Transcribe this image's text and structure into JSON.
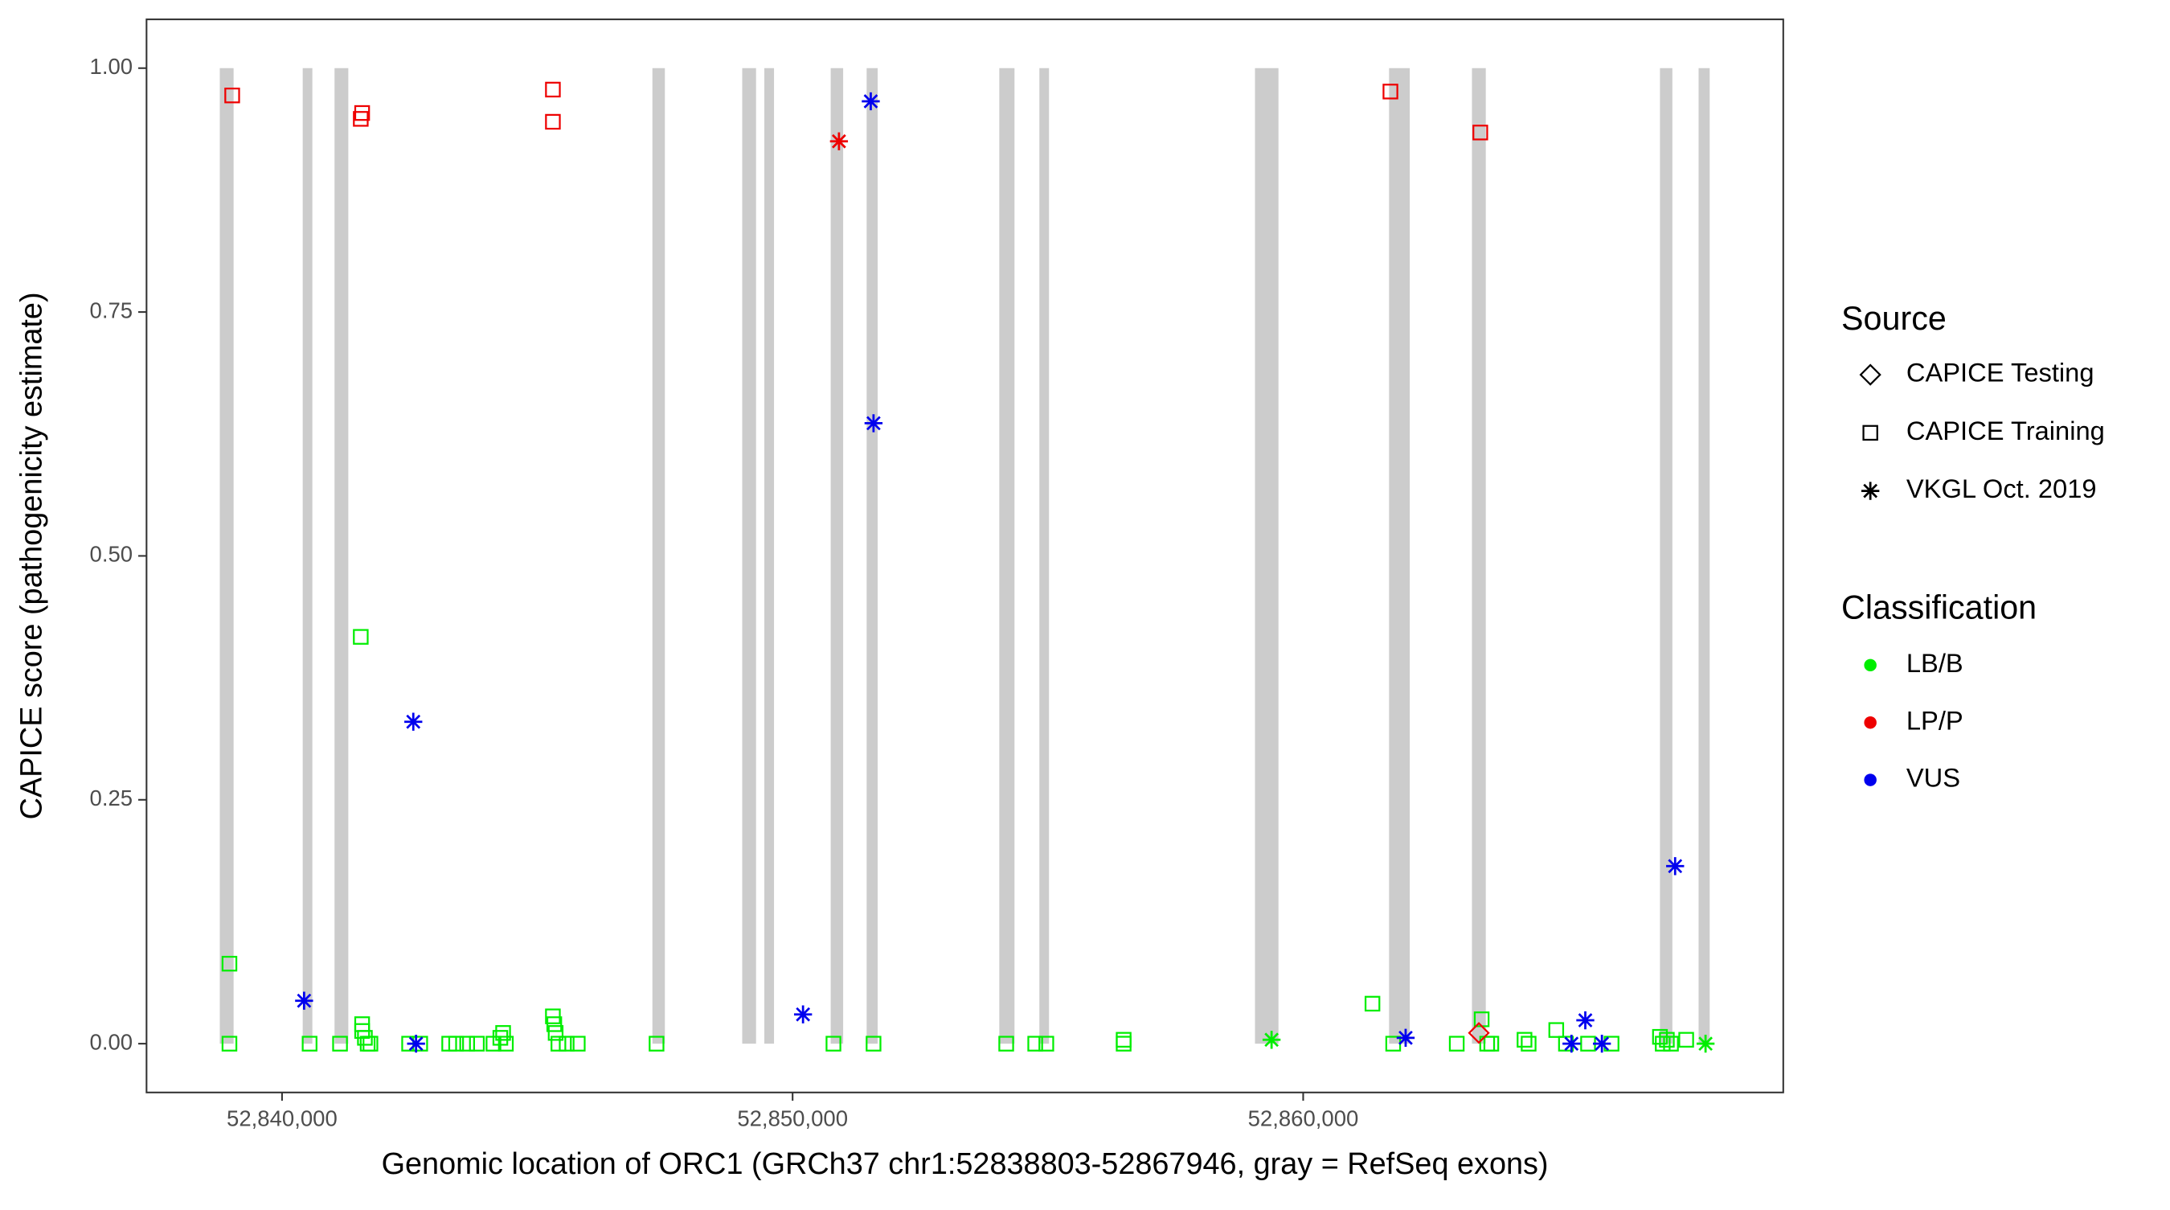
{
  "chart_data": {
    "type": "scatter",
    "x_label": "Genomic location of ORC1 (GRCh37 chr1:52838803-52867946, gray = RefSeq exons)",
    "y_label": "CAPICE score (pathogenicity estimate)",
    "xlim": [
      52837346,
      52869403
    ],
    "ylim": [
      -0.05,
      1.05
    ],
    "xticks": [
      {
        "value": 52840000,
        "label": "52,840,000"
      },
      {
        "value": 52850000,
        "label": "52,850,000"
      },
      {
        "value": 52860000,
        "label": "52,860,000"
      }
    ],
    "yticks": [
      {
        "value": 0,
        "label": "0.00"
      },
      {
        "value": 0.25,
        "label": "0.25"
      },
      {
        "value": 0.5,
        "label": "0.50"
      },
      {
        "value": 0.75,
        "label": "0.75"
      },
      {
        "value": 1,
        "label": "1.00"
      }
    ],
    "exon_color": "#cccccc",
    "exons": [
      [
        52838781,
        52839051
      ],
      [
        52840405,
        52840594
      ],
      [
        52841028,
        52841298
      ],
      [
        52847254,
        52847498
      ],
      [
        52849013,
        52849284
      ],
      [
        52849446,
        52849636
      ],
      [
        52850746,
        52850990
      ],
      [
        52851450,
        52851666
      ],
      [
        52854048,
        52854346
      ],
      [
        52854833,
        52855022
      ],
      [
        52859056,
        52859516
      ],
      [
        52861682,
        52862088
      ],
      [
        52863306,
        52863577
      ],
      [
        52866988,
        52867231
      ],
      [
        52867745,
        52867962
      ]
    ],
    "shape_legend": {
      "title": "Source",
      "entries": [
        {
          "name": "CAPICE Testing",
          "shape": "diamond"
        },
        {
          "name": "CAPICE Training",
          "shape": "square"
        },
        {
          "name": "VKGL Oct. 2019",
          "shape": "asterisk"
        }
      ]
    },
    "color_legend": {
      "title": "Classification",
      "entries": [
        {
          "name": "LB/B",
          "color": "#00ee00"
        },
        {
          "name": "LP/P",
          "color": "#ee0000"
        },
        {
          "name": "VUS",
          "color": "#0000ee"
        }
      ]
    },
    "x": [
      52838970,
      52841542,
      52838970,
      52840540,
      52841136,
      52841569,
      52841569,
      52841623,
      52841677,
      52841731,
      52842489,
      52842706,
      52843274,
      52843410,
      52843626,
      52843816,
      52844141,
      52844276,
      52844330,
      52844384,
      52845305,
      52845332,
      52845359,
      52845413,
      52845575,
      52845792,
      52847335,
      52850800,
      52851585,
      52854184,
      52854752,
      52854969,
      52856484,
      52856484,
      52861357,
      52861763,
      52863008,
      52863496,
      52863604,
      52863685,
      52864335,
      52864416,
      52864957,
      52865147,
      52865580,
      52866040,
      52866988,
      52867042,
      52867123,
      52867204,
      52867502,
      52859381,
      52867881,
      52839024,
      52841569,
      52841542,
      52845305,
      52845305,
      52861709,
      52863469,
      52850908,
      52863441,
      52851531,
      52851585,
      52842571,
      52840432,
      52850204,
      52867285,
      52842625,
      52862007,
      52865255,
      52865526,
      52865851
    ],
    "y": [
      0.082,
      0.417,
      0,
      0,
      0,
      0.02,
      0.013,
      0.006,
      0,
      0,
      0,
      0,
      0,
      0,
      0,
      0,
      0,
      0.006,
      0.011,
      0,
      0.028,
      0.02,
      0.011,
      0,
      0,
      0,
      0,
      0,
      0,
      0,
      0,
      0,
      0.004,
      0,
      0.041,
      0,
      0,
      0.025,
      0,
      0,
      0.004,
      0,
      0.014,
      0,
      0,
      0,
      0.007,
      0,
      0.004,
      0,
      0.004,
      0.004,
      0,
      0.972,
      0.954,
      0.948,
      0.978,
      0.945,
      0.976,
      0.934,
      0.925,
      0.011,
      0.966,
      0.636,
      0.33,
      0.044,
      0.03,
      0.182,
      0,
      0.006,
      0,
      0.024,
      0
    ],
    "source": [
      "CAPICE Training",
      "CAPICE Training",
      "CAPICE Training",
      "CAPICE Training",
      "CAPICE Training",
      "CAPICE Training",
      "CAPICE Training",
      "CAPICE Training",
      "CAPICE Training",
      "CAPICE Training",
      "CAPICE Training",
      "CAPICE Training",
      "CAPICE Training",
      "CAPICE Training",
      "CAPICE Training",
      "CAPICE Training",
      "CAPICE Training",
      "CAPICE Training",
      "CAPICE Training",
      "CAPICE Training",
      "CAPICE Training",
      "CAPICE Training",
      "CAPICE Training",
      "CAPICE Training",
      "CAPICE Training",
      "CAPICE Training",
      "CAPICE Training",
      "CAPICE Training",
      "CAPICE Training",
      "CAPICE Training",
      "CAPICE Training",
      "CAPICE Training",
      "CAPICE Training",
      "CAPICE Training",
      "CAPICE Training",
      "CAPICE Training",
      "CAPICE Training",
      "CAPICE Training",
      "CAPICE Training",
      "CAPICE Training",
      "CAPICE Training",
      "CAPICE Training",
      "CAPICE Training",
      "CAPICE Training",
      "CAPICE Training",
      "CAPICE Training",
      "CAPICE Training",
      "CAPICE Training",
      "CAPICE Training",
      "CAPICE Training",
      "CAPICE Training",
      "VKGL Oct. 2019",
      "VKGL Oct. 2019",
      "CAPICE Training",
      "CAPICE Training",
      "CAPICE Training",
      "CAPICE Training",
      "CAPICE Training",
      "CAPICE Training",
      "CAPICE Training",
      "VKGL Oct. 2019",
      "CAPICE Testing",
      "VKGL Oct. 2019",
      "VKGL Oct. 2019",
      "VKGL Oct. 2019",
      "VKGL Oct. 2019",
      "VKGL Oct. 2019",
      "VKGL Oct. 2019",
      "VKGL Oct. 2019",
      "VKGL Oct. 2019",
      "VKGL Oct. 2019",
      "VKGL Oct. 2019",
      "VKGL Oct. 2019"
    ],
    "classification": [
      "LB/B",
      "LB/B",
      "LB/B",
      "LB/B",
      "LB/B",
      "LB/B",
      "LB/B",
      "LB/B",
      "LB/B",
      "LB/B",
      "LB/B",
      "LB/B",
      "LB/B",
      "LB/B",
      "LB/B",
      "LB/B",
      "LB/B",
      "LB/B",
      "LB/B",
      "LB/B",
      "LB/B",
      "LB/B",
      "LB/B",
      "LB/B",
      "LB/B",
      "LB/B",
      "LB/B",
      "LB/B",
      "LB/B",
      "LB/B",
      "LB/B",
      "LB/B",
      "LB/B",
      "LB/B",
      "LB/B",
      "LB/B",
      "LB/B",
      "LB/B",
      "LB/B",
      "LB/B",
      "LB/B",
      "LB/B",
      "LB/B",
      "LB/B",
      "LB/B",
      "LB/B",
      "LB/B",
      "LB/B",
      "LB/B",
      "LB/B",
      "LB/B",
      "LB/B",
      "LB/B",
      "LP/P",
      "LP/P",
      "LP/P",
      "LP/P",
      "LP/P",
      "LP/P",
      "LP/P",
      "LP/P",
      "LP/P",
      "VUS",
      "VUS",
      "VUS",
      "VUS",
      "VUS",
      "VUS",
      "VUS",
      "VUS",
      "VUS",
      "VUS",
      "VUS"
    ]
  }
}
